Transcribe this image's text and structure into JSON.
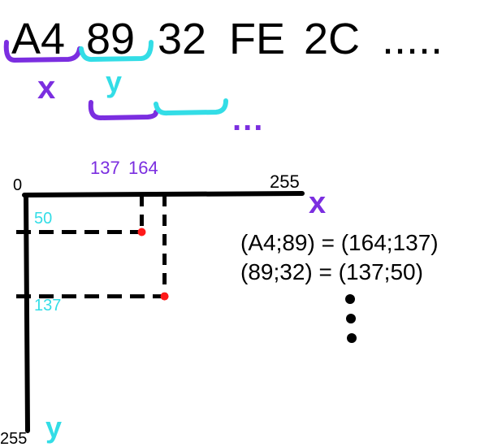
{
  "hex_sequence": [
    "A4",
    "89",
    "32",
    "FE",
    "2C",
    "....."
  ],
  "axis_labels": {
    "x": "x",
    "y": "y",
    "y2": "y"
  },
  "axes": {
    "origin": "0",
    "x_max": "255",
    "y_max": "255"
  },
  "ellipsis_marks": "...",
  "top_ticks": [
    {
      "label": "137",
      "value": 137
    },
    {
      "label": "164",
      "value": 164
    }
  ],
  "left_ticks": [
    {
      "label": "50",
      "value": 50
    },
    {
      "label": "137",
      "value": 137
    }
  ],
  "equations": [
    "(A4;89) = (164;137)",
    "(89;32) = (137;50)"
  ],
  "points": [
    {
      "x": 137,
      "y": 50
    },
    {
      "x": 164,
      "y": 137
    }
  ],
  "colors": {
    "purple": "#7b2ee0",
    "cyan": "#33dde6",
    "black": "#000000",
    "red": "#ff1a1a"
  }
}
